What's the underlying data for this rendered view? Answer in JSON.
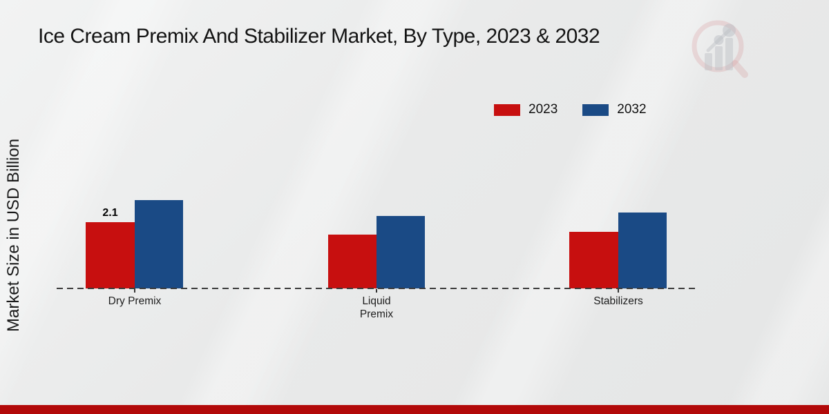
{
  "page": {
    "footer_bar_color": "#b20909",
    "background_color": "#e9eaea"
  },
  "chart_data": {
    "type": "bar",
    "title": "Ice Cream Premix And Stabilizer Market, By Type, 2023 & 2032",
    "ylabel": "Market Size in USD Billion",
    "xlabel": "",
    "categories": [
      "Dry Premix",
      "Liquid Premix",
      "Stabilizers"
    ],
    "series": [
      {
        "name": "2023",
        "color": "#c70f0f",
        "values": [
          2.1,
          1.7,
          1.8
        ]
      },
      {
        "name": "2032",
        "color": "#1a4a85",
        "values": [
          2.8,
          2.3,
          2.4
        ]
      }
    ],
    "annotations": [
      {
        "text": "2.1",
        "series": "2023",
        "category": "Dry Premix"
      }
    ],
    "ylim": [
      0,
      3.2
    ],
    "grid": false,
    "legend_position": "top-right",
    "baseline_style": "dashed",
    "watermark": "magnifier-bar-chart-logo"
  }
}
